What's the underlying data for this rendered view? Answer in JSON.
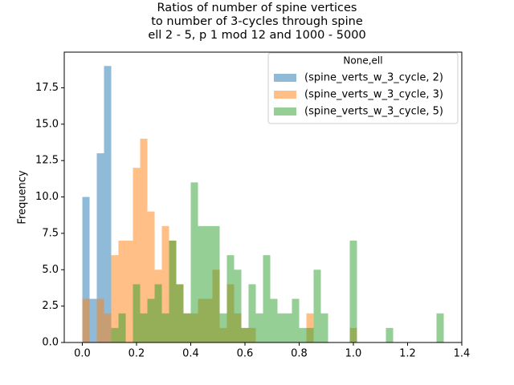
{
  "chart_data": {
    "type": "histogram",
    "title": "Ratios of number of spine vertices\nto number of 3-cycles through spine\nell 2 - 5, p 1 mod 12 and 1000 - 5000",
    "ylabel": "Frequency",
    "legend_title": "None,ell",
    "legend": "upper right",
    "bins": [
      0,
      0.0267,
      0.0533,
      0.08,
      0.1067,
      0.1333,
      0.16,
      0.1867,
      0.2133,
      0.24,
      0.2667,
      0.2933,
      0.32,
      0.3467,
      0.3733,
      0.4,
      0.4267,
      0.4533,
      0.48,
      0.5067,
      0.5333,
      0.56,
      0.5867,
      0.6133,
      0.64,
      0.6667,
      0.6933,
      0.72,
      0.7467,
      0.7733,
      0.8,
      0.8267,
      0.8533,
      0.88,
      0.9067,
      0.9333,
      0.96,
      0.9867,
      1.0133,
      1.04,
      1.0667,
      1.0933,
      1.12,
      1.1467,
      1.1733,
      1.2,
      1.2267,
      1.2533,
      1.28,
      1.3067,
      1.3333
    ],
    "alpha": 0.5,
    "series": [
      {
        "name": "(spine_verts_w_3_cycle, 2)",
        "color": "#1f77b4",
        "values": [
          10,
          3,
          13,
          19,
          0,
          0,
          0,
          0,
          0,
          0,
          0,
          0,
          0,
          0,
          0,
          0,
          0,
          0,
          0,
          0,
          0,
          0,
          0,
          0,
          0,
          0,
          0,
          0,
          0,
          0,
          0,
          0,
          0,
          0,
          0,
          0,
          0,
          0,
          0,
          0,
          0,
          0,
          0,
          0,
          0,
          0,
          0,
          0,
          0,
          0
        ]
      },
      {
        "name": "(spine_verts_w_3_cycle, 3)",
        "color": "#ff7f0e",
        "values": [
          3,
          0,
          3,
          2,
          6,
          7,
          7,
          12,
          14,
          9,
          5,
          8,
          7,
          4,
          2,
          2,
          3,
          3,
          5,
          1,
          4,
          2,
          1,
          1,
          0,
          0,
          0,
          0,
          0,
          0,
          0,
          2,
          0,
          0,
          0,
          0,
          0,
          1,
          0,
          0,
          0,
          0,
          0,
          0,
          0,
          0,
          0,
          0,
          0,
          0
        ]
      },
      {
        "name": "(spine_verts_w_3_cycle, 5)",
        "color": "#2ca02c",
        "values": [
          0,
          0,
          0,
          0,
          1,
          2,
          0,
          4,
          2,
          3,
          4,
          2,
          7,
          4,
          2,
          11,
          8,
          8,
          8,
          2,
          6,
          5,
          1,
          4,
          2,
          6,
          3,
          2,
          2,
          3,
          1,
          1,
          5,
          2,
          0,
          0,
          0,
          7,
          0,
          0,
          0,
          0,
          1,
          0,
          0,
          0,
          0,
          0,
          0,
          2
        ]
      }
    ],
    "xlim": [
      -0.0667,
      1.4
    ],
    "xticks": [
      {
        "value": 0,
        "label": "0.0"
      },
      0.2,
      0.4,
      0.6,
      0.8,
      {
        "value": 1,
        "label": "1.0"
      },
      1.2,
      1.4
    ],
    "ylim": [
      0,
      19.95
    ],
    "yticks": [
      {
        "value": 0,
        "label": "0.0"
      },
      2.5,
      {
        "value": 5,
        "label": "5.0"
      },
      7.5,
      {
        "value": 10,
        "label": "10.0"
      },
      12.5,
      {
        "value": 15,
        "label": "15.0"
      },
      17.5
    ]
  }
}
